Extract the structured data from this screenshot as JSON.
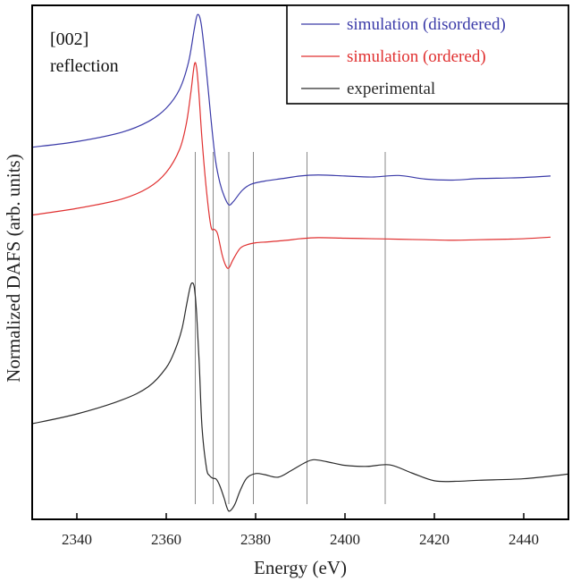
{
  "chart_data": {
    "type": "line",
    "xlabel": "Energy (eV)",
    "ylabel": "Normalized DAFS (arb. units)",
    "xlim": [
      2330,
      2450
    ],
    "ylim": [
      0,
      100
    ],
    "x_ticks": [
      2340,
      2360,
      2380,
      2400,
      2420,
      2440
    ],
    "grid": false,
    "legend_position": "top-right",
    "annotation": [
      "[002]",
      "reflection"
    ],
    "reference_lines_x": [
      2366.5,
      2370.5,
      2374,
      2379.5,
      2391.5,
      2409
    ],
    "series": [
      {
        "name": "simulation (disordered)",
        "color": "#3a3aa8",
        "x": [
          2330,
          2340,
          2350,
          2356,
          2360,
          2363,
          2365,
          2366.3,
          2367,
          2367.8,
          2368.8,
          2370,
          2371,
          2372,
          2373,
          2374,
          2375,
          2377,
          2379,
          2382,
          2386,
          2390,
          2394,
          2400,
          2406,
          2412,
          2418,
          2424,
          2430,
          2436,
          2440,
          2446
        ],
        "y": [
          72.4,
          73.5,
          75.3,
          77.4,
          80.0,
          83.7,
          89.0,
          95.5,
          98.2,
          96.5,
          89.0,
          78.0,
          70.0,
          65.5,
          62.8,
          61.2,
          61.8,
          64.0,
          65.2,
          65.8,
          66.3,
          66.8,
          67.0,
          66.8,
          66.6,
          66.9,
          66.2,
          66.0,
          66.3,
          66.4,
          66.5,
          66.8
        ]
      },
      {
        "name": "simulation (ordered)",
        "color": "#e03030",
        "x": [
          2330,
          2340,
          2350,
          2356,
          2360,
          2363,
          2364.5,
          2365.5,
          2366.3,
          2366.8,
          2367.3,
          2368,
          2369,
          2370,
          2370.8,
          2371.5,
          2372.5,
          2373.3,
          2374,
          2375,
          2376.5,
          2378,
          2380,
          2383,
          2387,
          2390,
          2394,
          2400,
          2406,
          2412,
          2418,
          2424,
          2430,
          2436,
          2440,
          2446
        ],
        "y": [
          59.2,
          60.5,
          62.3,
          64.5,
          67.5,
          72.0,
          77.0,
          83.0,
          88.5,
          87.8,
          83.0,
          74.0,
          64.0,
          57.0,
          56.4,
          55.5,
          51.5,
          49.4,
          48.9,
          50.6,
          52.7,
          53.4,
          53.8,
          54.0,
          54.3,
          54.6,
          54.8,
          54.7,
          54.6,
          54.5,
          54.4,
          54.3,
          54.4,
          54.5,
          54.6,
          54.9
        ]
      },
      {
        "name": "experimental",
        "color": "#2a2a2a",
        "x": [
          2330,
          2340,
          2350,
          2356,
          2360,
          2362,
          2363.5,
          2364.5,
          2365.3,
          2365.8,
          2366.3,
          2366.8,
          2367.4,
          2368,
          2369,
          2369.7,
          2370.4,
          2371.2,
          2372,
          2373,
          2373.5,
          2374,
          2374.7,
          2375.5,
          2376.5,
          2378,
          2380,
          2382,
          2385,
          2388,
          2391,
          2393,
          2396,
          2400,
          2405,
          2410,
          2415,
          2420,
          2425,
          2430,
          2440,
          2450
        ],
        "y": [
          18.6,
          20.5,
          23.2,
          25.8,
          29.5,
          33.0,
          37.0,
          41.5,
          45.0,
          46.0,
          45.0,
          40.0,
          30.0,
          18.0,
          10.0,
          8.5,
          8.0,
          7.8,
          6.5,
          4.0,
          2.5,
          1.6,
          2.0,
          3.2,
          5.5,
          8.0,
          8.9,
          8.7,
          8.2,
          9.5,
          11.0,
          11.6,
          11.2,
          10.5,
          10.3,
          10.6,
          9.0,
          7.5,
          7.4,
          7.6,
          7.9,
          8.8
        ]
      }
    ]
  }
}
